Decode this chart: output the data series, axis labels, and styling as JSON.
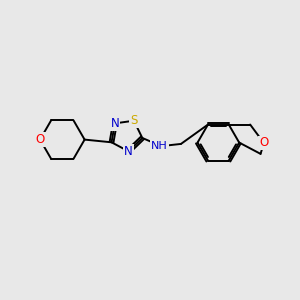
{
  "bg_color": "#e8e8e8",
  "bond_color": "#000000",
  "bond_width": 1.4,
  "atom_colors": {
    "O": "#ff0000",
    "N": "#0000cc",
    "S": "#ccaa00",
    "NH": "#0000cc",
    "C": "#000000"
  },
  "font_size_atom": 8.5,
  "figsize": [
    3.0,
    3.0
  ],
  "dpi": 100,
  "xlim": [
    0,
    10
  ],
  "ylim": [
    0,
    10
  ]
}
